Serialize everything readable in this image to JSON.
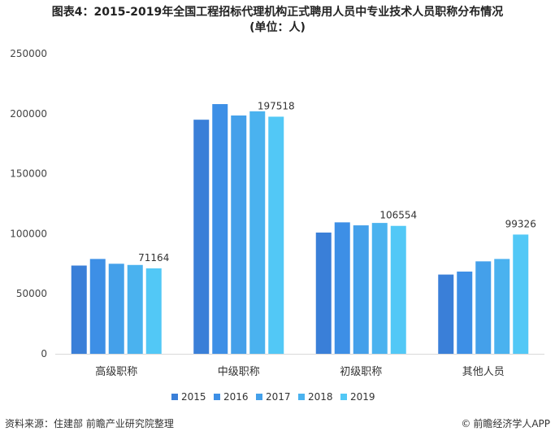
{
  "title": {
    "line1": "图表4：2015-2019年全国工程招标代理机构正式聘用人员中专业技术人员职称分布情况",
    "line2": "(单位：人)"
  },
  "chart_data": {
    "type": "bar",
    "categories": [
      "高级职称",
      "中级职称",
      "初级职称",
      "其他人员"
    ],
    "series": [
      {
        "name": "2015",
        "values": [
          73500,
          195000,
          101000,
          66000
        ],
        "color": "#3a7fd8"
      },
      {
        "name": "2016",
        "values": [
          79000,
          208000,
          109500,
          68500
        ],
        "color": "#3d8fe6"
      },
      {
        "name": "2017",
        "values": [
          75000,
          198500,
          107000,
          77000
        ],
        "color": "#44a0ea"
      },
      {
        "name": "2018",
        "values": [
          74000,
          202000,
          109000,
          79000
        ],
        "color": "#4ab2ef"
      },
      {
        "name": "2019",
        "values": [
          71164,
          197518,
          106554,
          99326
        ],
        "color": "#52c8f6"
      }
    ],
    "data_labels": [
      {
        "category_index": 0,
        "series_index": 4,
        "text": "71164"
      },
      {
        "category_index": 1,
        "series_index": 4,
        "text": "197518"
      },
      {
        "category_index": 2,
        "series_index": 4,
        "text": "106554"
      },
      {
        "category_index": 3,
        "series_index": 4,
        "text": "99326"
      }
    ],
    "y_ticks": [
      0,
      50000,
      100000,
      150000,
      200000,
      250000
    ],
    "ylim": [
      0,
      250000
    ],
    "grid": false,
    "legend": "bottom",
    "xlabel": "",
    "ylabel": ""
  },
  "footer": {
    "source": "资料来源：住建部 前瞻产业研究院整理",
    "brand": "前瞻经济学人APP",
    "brand_icon": "copyright-icon"
  }
}
